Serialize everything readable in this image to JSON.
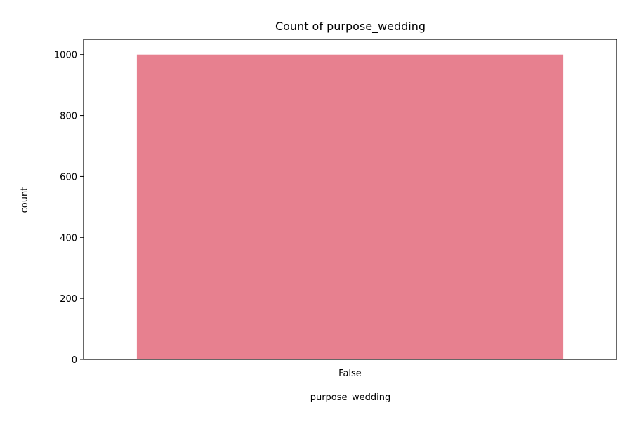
{
  "chart_data": {
    "type": "bar",
    "title": "Count of purpose_wedding",
    "xlabel": "purpose_wedding",
    "ylabel": "count",
    "categories": [
      "False"
    ],
    "values": [
      1000
    ],
    "ylim": [
      0,
      1050
    ],
    "yticks": [
      0,
      200,
      400,
      600,
      800,
      1000
    ],
    "grid": false,
    "bar_color": "#e7808f"
  }
}
